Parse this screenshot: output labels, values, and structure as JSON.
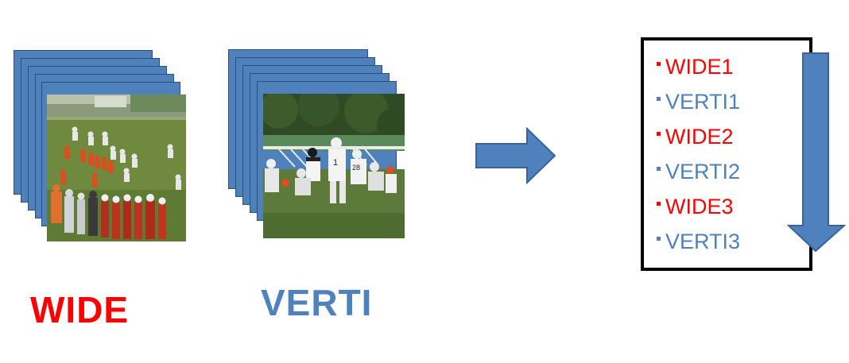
{
  "colors": {
    "wide": "#ff0000",
    "verti": "#4f81bd",
    "frame": "#4f81bd",
    "arrow": "#4f81bd",
    "box_border": "#000000"
  },
  "stacks": {
    "wide": {
      "label": "WIDE",
      "kind": "wide"
    },
    "verti": {
      "label": "VERTI",
      "kind": "verti"
    }
  },
  "sequence": [
    {
      "text": "WIDE1",
      "kind": "wide"
    },
    {
      "text": "VERTI1",
      "kind": "verti"
    },
    {
      "text": "WIDE2",
      "kind": "wide"
    },
    {
      "text": "VERTI2",
      "kind": "verti"
    },
    {
      "text": "WIDE3",
      "kind": "wide"
    },
    {
      "text": "VERTI3",
      "kind": "verti"
    }
  ],
  "icons": {
    "right_arrow": "right-arrow-icon",
    "down_arrow": "down-arrow-icon"
  }
}
